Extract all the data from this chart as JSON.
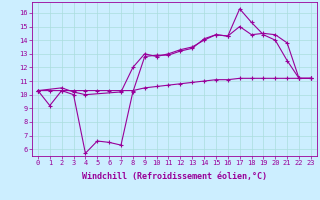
{
  "xlabel": "Windchill (Refroidissement éolien,°C)",
  "ylabel": "",
  "bg_color": "#cceeff",
  "grid_color": "#aadddd",
  "line_color": "#990099",
  "line1_x": [
    0,
    1,
    2,
    3,
    4,
    5,
    6,
    7,
    8,
    9,
    10,
    11,
    12,
    13,
    14,
    15,
    16,
    17,
    18,
    19,
    20,
    21,
    22,
    23
  ],
  "line1_y": [
    10.3,
    9.2,
    10.3,
    10.0,
    5.7,
    6.6,
    6.5,
    6.3,
    10.2,
    12.8,
    12.9,
    12.9,
    13.2,
    13.4,
    14.1,
    14.4,
    14.3,
    16.3,
    15.3,
    14.4,
    14.0,
    12.5,
    11.2,
    11.2
  ],
  "line2_x": [
    0,
    2,
    3,
    4,
    7,
    8,
    9,
    10,
    11,
    12,
    13,
    14,
    15,
    16,
    17,
    18,
    19,
    20,
    21,
    22,
    23
  ],
  "line2_y": [
    10.3,
    10.5,
    10.2,
    10.0,
    10.2,
    12.0,
    13.0,
    12.8,
    13.0,
    13.3,
    13.5,
    14.0,
    14.4,
    14.3,
    15.0,
    14.4,
    14.5,
    14.4,
    13.8,
    11.2,
    11.2
  ],
  "line3_x": [
    0,
    1,
    2,
    3,
    4,
    5,
    6,
    7,
    8,
    9,
    10,
    11,
    12,
    13,
    14,
    15,
    16,
    17,
    18,
    19,
    20,
    21,
    22,
    23
  ],
  "line3_y": [
    10.3,
    10.3,
    10.3,
    10.3,
    10.3,
    10.3,
    10.3,
    10.3,
    10.3,
    10.5,
    10.6,
    10.7,
    10.8,
    10.9,
    11.0,
    11.1,
    11.1,
    11.2,
    11.2,
    11.2,
    11.2,
    11.2,
    11.2,
    11.2
  ],
  "xlim": [
    -0.5,
    23.5
  ],
  "ylim": [
    5.5,
    16.8
  ],
  "yticks": [
    6,
    7,
    8,
    9,
    10,
    11,
    12,
    13,
    14,
    15,
    16
  ],
  "xticks": [
    0,
    1,
    2,
    3,
    4,
    5,
    6,
    7,
    8,
    9,
    10,
    11,
    12,
    13,
    14,
    15,
    16,
    17,
    18,
    19,
    20,
    21,
    22,
    23
  ],
  "tick_fontsize": 5.0,
  "xlabel_fontsize": 6.0
}
